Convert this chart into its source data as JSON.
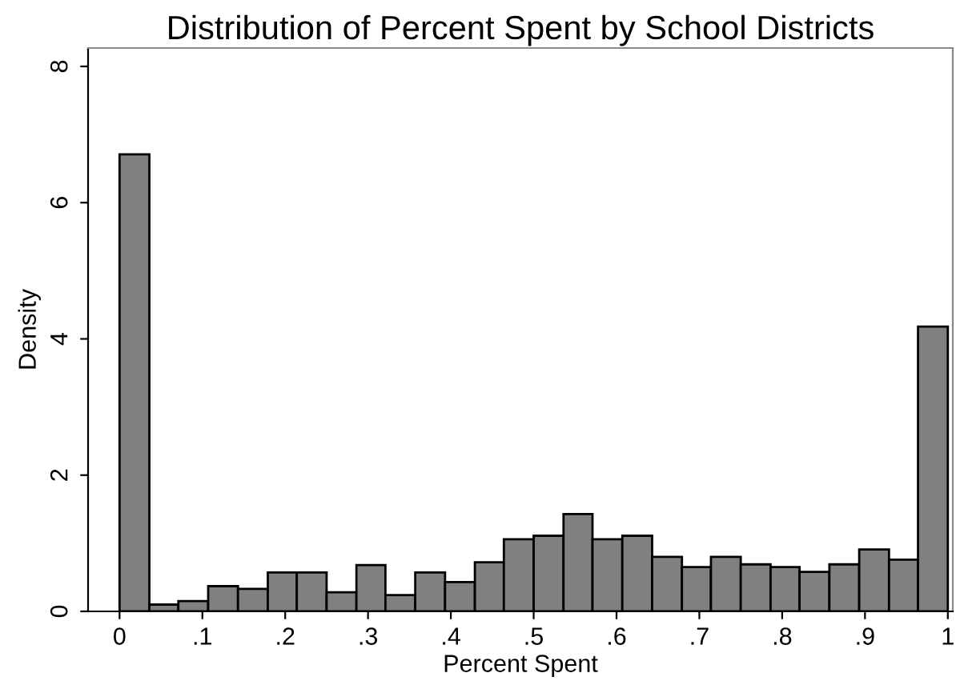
{
  "chart_data": {
    "type": "histogram",
    "title": "Distribution of Percent Spent by School Districts",
    "xlabel": "Percent Spent",
    "ylabel": "Density",
    "bins": [
      0,
      0.036,
      0.071,
      0.107,
      0.143,
      0.179,
      0.214,
      0.25,
      0.286,
      0.321,
      0.357,
      0.393,
      0.429,
      0.464,
      0.5,
      0.536,
      0.571,
      0.607,
      0.643,
      0.679,
      0.714,
      0.75,
      0.786,
      0.821,
      0.857,
      0.893,
      0.929,
      0.964,
      1
    ],
    "values": [
      6.71,
      0.1,
      0.15,
      0.37,
      0.33,
      0.57,
      0.57,
      0.28,
      0.68,
      0.24,
      0.57,
      0.43,
      0.72,
      1.06,
      1.11,
      1.43,
      1.06,
      1.11,
      0.8,
      0.65,
      0.8,
      0.69,
      0.65,
      0.58,
      0.69,
      0.91,
      0.76,
      4.18
    ],
    "color": "#808080",
    "xlim": [
      -0.038,
      1.006
    ],
    "ylim": [
      0,
      8.27
    ],
    "xticks": [
      0,
      {
        "value": 0.1,
        "label": ".1"
      },
      {
        "value": 0.2,
        "label": ".2"
      },
      {
        "value": 0.3,
        "label": ".3"
      },
      {
        "value": 0.4,
        "label": ".4"
      },
      {
        "value": 0.5,
        "label": ".5"
      },
      {
        "value": 0.6,
        "label": ".6"
      },
      {
        "value": 0.7,
        "label": ".7"
      },
      {
        "value": 0.8,
        "label": ".8"
      },
      {
        "value": 0.9,
        "label": ".9"
      },
      1
    ],
    "yticks": [
      0,
      2,
      4,
      6,
      8
    ],
    "grid": false
  }
}
